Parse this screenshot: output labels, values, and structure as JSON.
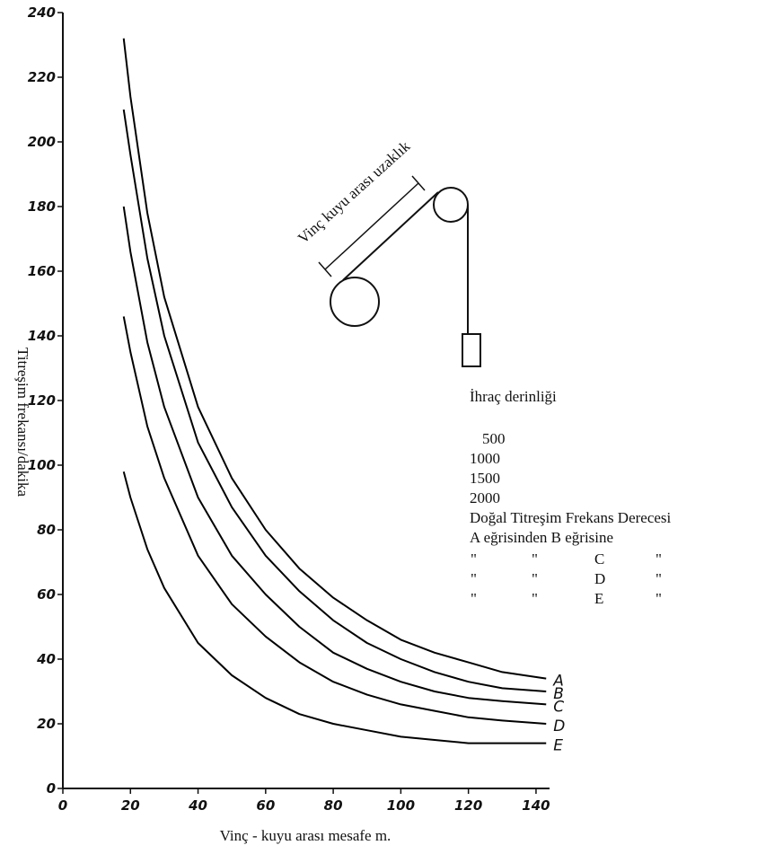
{
  "chart_data": {
    "type": "line",
    "y_label": "Titreşim frekansı/dakika",
    "x_label": "Vinç - kuyu arası mesafe m.",
    "x": [
      18,
      20,
      25,
      30,
      40,
      50,
      60,
      70,
      80,
      90,
      100,
      110,
      120,
      130,
      143
    ],
    "series": [
      {
        "name": "A",
        "color": "#000000",
        "values": [
          232,
          214,
          178,
          152,
          118,
          96,
          80,
          68,
          59,
          52,
          46,
          42,
          39,
          36,
          34
        ]
      },
      {
        "name": "B",
        "color": "#000000",
        "values": [
          210,
          196,
          164,
          140,
          107,
          87,
          72,
          61,
          52,
          45,
          40,
          36,
          33,
          31,
          30
        ]
      },
      {
        "name": "C",
        "color": "#000000",
        "values": [
          180,
          166,
          138,
          118,
          90,
          72,
          60,
          50,
          42,
          37,
          33,
          30,
          28,
          27,
          26
        ]
      },
      {
        "name": "D",
        "color": "#000000",
        "values": [
          146,
          135,
          112,
          96,
          72,
          57,
          47,
          39,
          33,
          29,
          26,
          24,
          22,
          21,
          20
        ]
      },
      {
        "name": "E",
        "color": "#000000",
        "values": [
          98,
          90,
          74,
          62,
          45,
          35,
          28,
          23,
          20,
          18,
          16,
          15,
          14,
          14,
          14
        ]
      }
    ],
    "xlim": [
      0,
      144
    ],
    "ylim": [
      0,
      240
    ],
    "xticks": [
      0,
      20,
      40,
      60,
      80,
      100,
      120,
      140
    ],
    "yticks": [
      0,
      20,
      40,
      60,
      80,
      100,
      120,
      140,
      160,
      180,
      200,
      220,
      240
    ],
    "diagram_label": "Vinç kuyu arası uzaklık",
    "notes": [
      "İhraç derinliği",
      "500",
      "1000",
      "1500",
      "2000",
      "Doğal Titreşim Frekans Derecesi",
      "A eğrisinden B eğrisine"
    ],
    "note_rows": [
      [
        "\"",
        "\"",
        "C",
        "\""
      ],
      [
        "\"",
        "\"",
        "D",
        "\""
      ],
      [
        "\"",
        "\"",
        "E",
        "\""
      ]
    ]
  }
}
